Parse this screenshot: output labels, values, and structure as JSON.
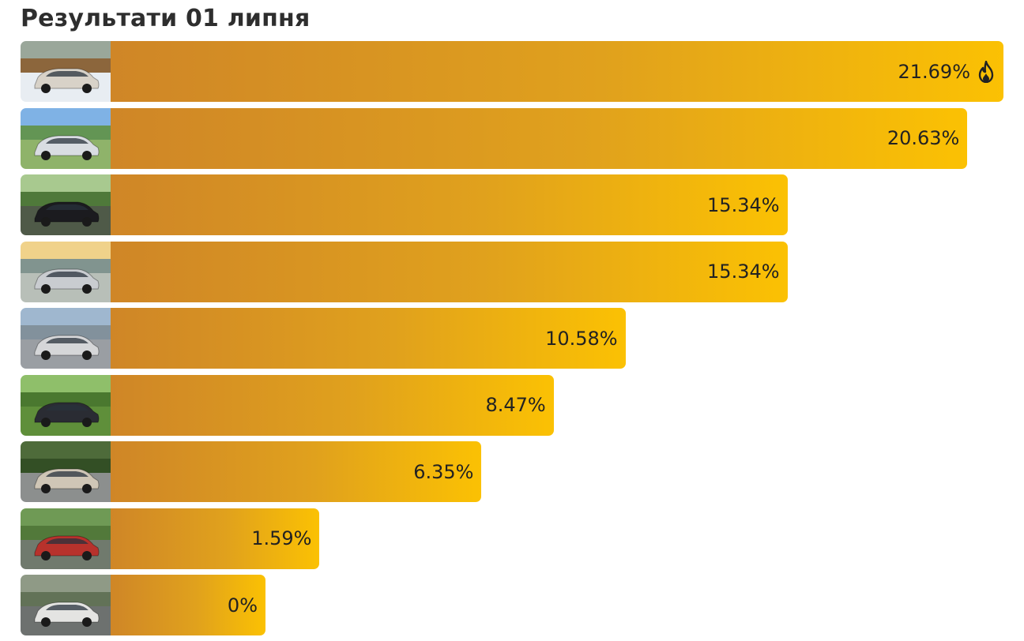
{
  "title": "Результати 01 липня",
  "chart_data": {
    "type": "bar",
    "orientation": "horizontal",
    "title": "Результати 01 липня",
    "categories": [
      "",
      "",
      "",
      "",
      "",
      "",
      "",
      "",
      ""
    ],
    "values": [
      21.69,
      20.63,
      15.34,
      15.34,
      10.58,
      8.47,
      6.35,
      1.59,
      0
    ],
    "value_labels": [
      "21.69%",
      "20.63%",
      "15.34%",
      "15.34%",
      "10.58%",
      "8.47%",
      "6.35%",
      "1.59%",
      "0%"
    ],
    "leader_icon": "fire-icon",
    "thumbnails": [
      "car-thumbnail-white-suv-snow",
      "car-thumbnail-silver-sedan-field",
      "car-thumbnail-black-sedan-trees",
      "car-thumbnail-silver-hatchback-sunset",
      "car-thumbnail-silver-sedan-lot",
      "car-thumbnail-dark-suv-grass",
      "car-thumbnail-beige-wagon-rear",
      "car-thumbnail-red-hatchback-street",
      "car-thumbnail-white-crossover-road"
    ],
    "colors": {
      "bar_start": "#cf8627",
      "bar_end": "#fbc103",
      "text": "#222222"
    }
  }
}
